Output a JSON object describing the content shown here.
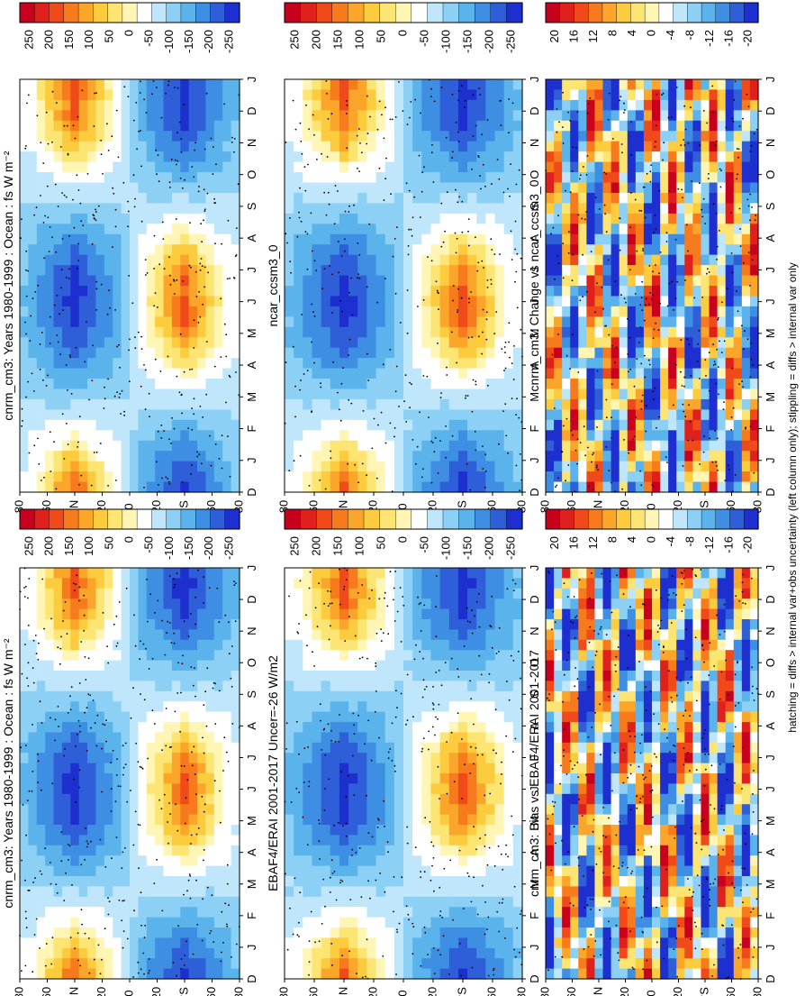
{
  "footer": "hatching = diffs > internal var+obs uncertainty (left column only); stippling = diffs > internal var only",
  "palettes": {
    "warm": [
      "#c8001e",
      "#e0201c",
      "#f04a1a",
      "#f77a1c",
      "#fba52a",
      "#fccb3e",
      "#fde574",
      "#fff5b4",
      "#ffffff",
      "#bfe6fb",
      "#8dd0f5",
      "#5bb3ec",
      "#3e8fe3",
      "#2e5fd9",
      "#1e2fcf"
    ]
  },
  "rows": [
    {
      "colorbar": {
        "labels": [
          "250",
          "200",
          "150",
          "100",
          "50",
          "0",
          "-50",
          "-100",
          "-150",
          "-200",
          "-250"
        ]
      },
      "panels": [
        {
          "title": "cnrm_cm3: Years 1980-1999 : Ocean : fs W m⁻²",
          "type": "heatmap"
        },
        {
          "title": "cnrm_cm3: Years 1980-1999 : Ocean : fs W m⁻²",
          "type": "heatmap"
        }
      ]
    },
    {
      "colorbar": {
        "labels": [
          "250",
          "200",
          "150",
          "100",
          "50",
          "0",
          "-50",
          "-100",
          "-150",
          "-200",
          "-250"
        ]
      },
      "panels": [
        {
          "title": "EBAF4/ERAI 2001-2017 Uncer=-26 W/m2",
          "type": "heatmap"
        },
        {
          "title": "ncar_ccsm3_0",
          "type": "heatmap"
        }
      ]
    },
    {
      "colorbar": {
        "labels": [
          "20",
          "16",
          "12",
          "8",
          "4",
          "0",
          "-4",
          "-8",
          "-12",
          "-16",
          "-20"
        ]
      },
      "panels": [
        {
          "title": "cnrm_cm3: Bias vs EBAF4/ERAI 2001-2017",
          "type": "heatmap"
        },
        {
          "title": "cnrm_cm3: Change vs ncar_ccsm3_0",
          "type": "heatmap"
        }
      ]
    }
  ],
  "chart_data": {
    "type": "heatmap",
    "months": [
      "D",
      "J",
      "F",
      "M",
      "A",
      "M",
      "J",
      "J",
      "A",
      "S",
      "O",
      "N",
      "D",
      "J"
    ],
    "lat_ticks": [
      "80",
      "60",
      "40",
      "20",
      "0",
      "20",
      "40",
      "60",
      "80"
    ],
    "lat_label_ticks": [
      "80",
      "60",
      "°N",
      "20",
      "0",
      "20",
      "°S",
      "60",
      "80"
    ],
    "panels": [
      {
        "title": "cnrm_cm3: Years 1980-1999 : Ocean : fs W m⁻²",
        "range": [
          -250,
          250
        ]
      },
      {
        "title": "EBAF4/ERAI 2001-2017 Uncer=-26 W/m2",
        "range": [
          -250,
          250
        ]
      },
      {
        "title": "cnrm_cm3: Bias vs EBAF4/ERAI 2001-2017",
        "range": [
          -20,
          20
        ]
      },
      {
        "title": "cnrm_cm3: Years 1980-1999 : Ocean : fs W m⁻²",
        "range": [
          -250,
          250
        ]
      },
      {
        "title": "ncar_ccsm3_0",
        "range": [
          -250,
          250
        ]
      },
      {
        "title": "cnrm_cm3: Change vs ncar_ccsm3_0",
        "range": [
          -20,
          20
        ]
      }
    ]
  }
}
